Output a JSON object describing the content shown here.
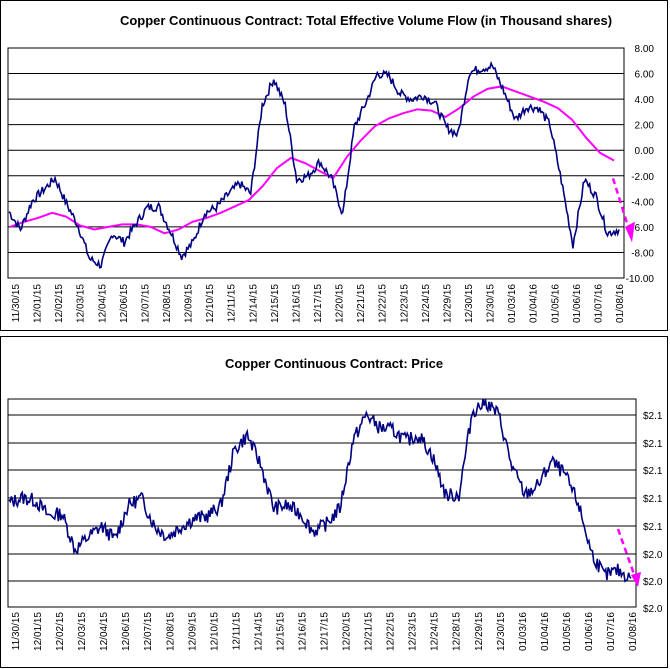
{
  "chart_data": [
    {
      "type": "line",
      "title": "Copper Continuous Contract: Total Effective Volume Flow (in Thousand shares)",
      "xlabel": "",
      "ylabel": "",
      "ylim": [
        -10,
        8
      ],
      "yticks": [
        "8.00",
        "6.00",
        "4.00",
        "2.00",
        "0.00",
        "-2.00",
        "-4.00",
        "-6.00",
        "-8.00",
        "-10.00"
      ],
      "x_ticks": [
        "11/30/15",
        "12/01/15",
        "12/02/15",
        "12/03/15",
        "12/04/15",
        "12/06/15",
        "12/07/15",
        "12/08/15",
        "12/09/15",
        "12/10/15",
        "12/11/15",
        "12/14/15",
        "12/15/15",
        "12/16/15",
        "12/17/15",
        "12/20/15",
        "12/21/15",
        "12/22/15",
        "12/23/15",
        "12/24/15",
        "12/29/15",
        "12/30/15",
        "12/30/15",
        "01/03/16",
        "01/04/16",
        "01/05/16",
        "01/06/16",
        "01/07/16",
        "01/08/16"
      ],
      "grid": true,
      "series": [
        {
          "color": "#000080",
          "values": [
            -4.8,
            -6.2,
            -4.0,
            -3.1,
            -2.2,
            -4.2,
            -5.9,
            -8.5,
            -9.0,
            -6.5,
            -7.2,
            -5.8,
            -4.5,
            -4.4,
            -6.3,
            -8.3,
            -7.2,
            -4.9,
            -4.5,
            -3.5,
            -2.6,
            -3.4,
            3.5,
            5.6,
            3.5,
            -2.3,
            -2.0,
            -0.9,
            -2.2,
            -5.0,
            1.8,
            3.7,
            6.0,
            5.8,
            4.4,
            4.0,
            4.3,
            3.7,
            1.8,
            1.2,
            6.1,
            6.4,
            6.6,
            4.6,
            2.4,
            3.4,
            3.3,
            2.0,
            -2.4,
            -7.4,
            -2.3,
            -3.6,
            -6.5,
            -6.2
          ]
        },
        {
          "color": "#ff00ff",
          "values": [
            -6.0,
            -5.6,
            -5.3,
            -4.9,
            -5.2,
            -5.9,
            -6.2,
            -6.0,
            -5.8,
            -5.8,
            -6.0,
            -6.5,
            -6.2,
            -5.6,
            -5.3,
            -4.9,
            -4.4,
            -3.9,
            -2.8,
            -1.4,
            -0.6,
            -1.0,
            -1.6,
            -2.2,
            -0.5,
            0.8,
            1.9,
            2.5,
            2.9,
            3.2,
            3.1,
            2.6,
            3.3,
            4.2,
            4.8,
            5.0,
            4.6,
            4.2,
            3.8,
            3.3,
            2.4,
            1.0,
            -0.2,
            -0.8
          ]
        }
      ],
      "annotation": {
        "type": "dashed-arrow",
        "color": "#ff00ff",
        "from": [
          -2.2,
          0
        ],
        "to": [
          -6.8,
          0
        ]
      }
    },
    {
      "type": "line",
      "title": "Copper Continuous Contract: Price",
      "xlabel": "",
      "ylabel": "",
      "yticks": [
        "$2.1",
        "$2.1",
        "$2.1",
        "$2.1",
        "$2.1",
        "$2.0",
        "$2.0",
        "$2.0"
      ],
      "x_ticks": [
        "11/30/15",
        "12/01/15",
        "12/02/15",
        "12/03/15",
        "12/04/15",
        "12/06/15",
        "12/07/15",
        "12/08/15",
        "12/09/15",
        "12/10/15",
        "12/11/15",
        "12/14/15",
        "12/15/15",
        "12/16/15",
        "12/17/15",
        "12/20/15",
        "12/21/15",
        "12/22/15",
        "12/23/15",
        "12/24/15",
        "12/28/15",
        "12/29/15",
        "12/30/15",
        "01/03/16",
        "01/04/16",
        "01/05/16",
        "01/06/16",
        "01/07/16",
        "01/08/16"
      ],
      "grid": true,
      "series": [
        {
          "color": "#000080",
          "values": [
            4.0,
            4.2,
            4.1,
            3.5,
            3.6,
            2.2,
            2.7,
            3.1,
            2.6,
            3.9,
            4.2,
            3.1,
            2.7,
            3.1,
            3.4,
            3.5,
            3.9,
            6.0,
            6.6,
            5.5,
            3.8,
            3.9,
            3.6,
            2.9,
            3.2,
            3.8,
            6.4,
            7.4,
            6.9,
            6.8,
            6.4,
            6.6,
            5.8,
            4.3,
            4.3,
            7.5,
            7.9,
            7.4,
            5.4,
            4.3,
            4.7,
            5.6,
            5.1,
            4.0,
            2.1,
            1.2,
            1.4,
            1.1
          ]
        }
      ],
      "annotation": {
        "type": "dashed-arrow",
        "color": "#ff00ff"
      }
    }
  ]
}
